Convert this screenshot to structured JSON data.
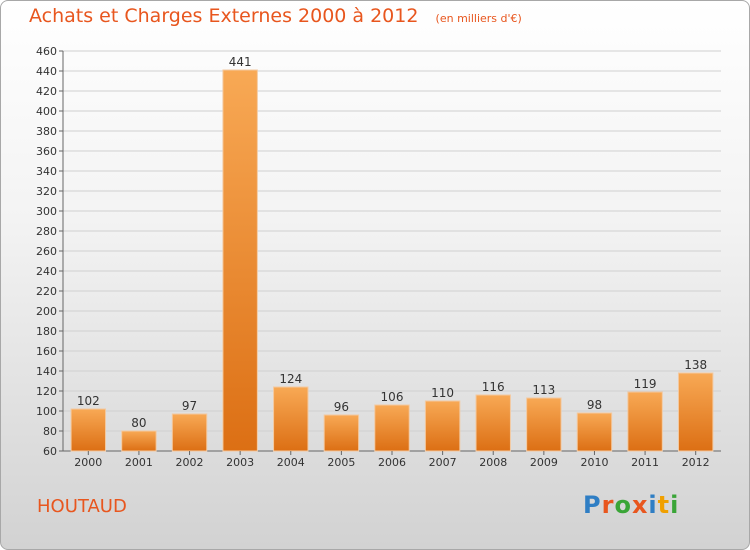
{
  "title": "Achats et Charges Externes 2000 à 2012",
  "unit_note": "(en milliers d'€)",
  "commune": "HOUTAUD",
  "logo": {
    "text": "Proxiti",
    "letter_colors": [
      "#2f7ec4",
      "#e8561e",
      "#3aa537",
      "#e8561e",
      "#2f7ec4",
      "#f0a000",
      "#3aa537"
    ]
  },
  "chart_data": {
    "type": "bar",
    "categories": [
      "2000",
      "2001",
      "2002",
      "2003",
      "2004",
      "2005",
      "2006",
      "2007",
      "2008",
      "2009",
      "2010",
      "2011",
      "2012"
    ],
    "values": [
      102,
      80,
      97,
      441,
      124,
      96,
      106,
      110,
      116,
      113,
      98,
      119,
      138
    ],
    "data_labels": [
      "102",
      "80",
      "97",
      "441",
      "124",
      "96",
      "106",
      "110",
      "116",
      "113",
      "98",
      "119",
      "138"
    ],
    "y_ticks": [
      "60",
      "80",
      "100",
      "120",
      "140",
      "160",
      "180",
      "200",
      "220",
      "240",
      "260",
      "280",
      "300",
      "320",
      "340",
      "360",
      "380",
      "400",
      "420",
      "440",
      "460"
    ],
    "ylim": [
      60,
      460
    ],
    "grid": true,
    "bar_color": "#f08a2c",
    "title": "Achats et Charges Externes 2000 à 2012",
    "xlabel": "",
    "ylabel": ""
  }
}
